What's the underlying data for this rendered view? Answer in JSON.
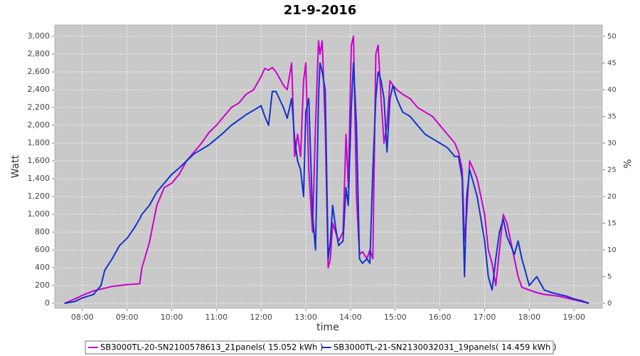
{
  "chart_data": {
    "type": "line",
    "title": "21-9-2016",
    "xlabel": "time",
    "ylabel": "Watt",
    "y2label": "%",
    "x": [
      "07:36",
      "07:50",
      "08:00",
      "08:15",
      "08:25",
      "08:30",
      "08:40",
      "08:50",
      "09:00",
      "09:10",
      "09:17",
      "09:20",
      "09:30",
      "09:40",
      "09:50",
      "10:00",
      "10:10",
      "10:20",
      "10:30",
      "10:40",
      "10:50",
      "11:00",
      "11:10",
      "11:20",
      "11:30",
      "11:40",
      "11:50",
      "12:00",
      "12:05",
      "12:10",
      "12:15",
      "12:20",
      "12:30",
      "12:35",
      "12:41",
      "12:45",
      "12:49",
      "12:53",
      "12:57",
      "13:00",
      "13:04",
      "13:09",
      "13:13",
      "13:17",
      "13:19",
      "13:22",
      "13:26",
      "13:30",
      "13:33",
      "13:36",
      "13:40",
      "13:44",
      "13:50",
      "13:54",
      "13:57",
      "14:01",
      "14:04",
      "14:08",
      "14:12",
      "14:16",
      "14:22",
      "14:26",
      "14:30",
      "14:34",
      "14:37",
      "14:41",
      "14:45",
      "14:49",
      "14:53",
      "14:57",
      "15:02",
      "15:10",
      "15:20",
      "15:30",
      "15:40",
      "15:50",
      "16:00",
      "16:10",
      "16:20",
      "16:25",
      "16:30",
      "16:33",
      "16:36",
      "16:40",
      "16:45",
      "16:50",
      "17:00",
      "17:05",
      "17:10",
      "17:15",
      "17:20",
      "17:25",
      "17:30",
      "17:35",
      "17:40",
      "17:45",
      "17:50",
      "18:00",
      "18:10",
      "18:20",
      "18:30",
      "18:40",
      "18:50",
      "19:00",
      "19:10",
      "19:20"
    ],
    "series": [
      {
        "name": "SB3000TL-20-SN2100578613_21panels( 15.052 kWh )",
        "color": "#cc00cc",
        "values": [
          0,
          50,
          90,
          140,
          160,
          170,
          190,
          200,
          210,
          215,
          220,
          400,
          680,
          1100,
          1300,
          1350,
          1450,
          1600,
          1700,
          1800,
          1920,
          2000,
          2100,
          2200,
          2250,
          2350,
          2400,
          2550,
          2640,
          2620,
          2650,
          2600,
          2450,
          2400,
          2700,
          1650,
          1900,
          1650,
          2500,
          2700,
          1500,
          800,
          2000,
          2950,
          2800,
          2950,
          2000,
          400,
          500,
          900,
          800,
          700,
          800,
          1900,
          1300,
          2900,
          3000,
          1200,
          550,
          580,
          500,
          600,
          500,
          2800,
          2900,
          2300,
          1800,
          2000,
          2500,
          2450,
          2400,
          2350,
          2300,
          2200,
          2150,
          2100,
          2000,
          1900,
          1800,
          1700,
          1500,
          700,
          1000,
          1600,
          1500,
          1400,
          1000,
          600,
          450,
          200,
          600,
          1000,
          900,
          700,
          500,
          300,
          180,
          150,
          120,
          100,
          90,
          80,
          60,
          40,
          20,
          0
        ]
      },
      {
        "name": "SB3000TL-21-SN2130032031_19panels( 14.459 kWh )",
        "color": "#1133cc",
        "values": [
          0,
          20,
          60,
          100,
          200,
          370,
          500,
          650,
          730,
          850,
          950,
          1000,
          1100,
          1250,
          1350,
          1450,
          1520,
          1600,
          1680,
          1730,
          1780,
          1850,
          1920,
          2000,
          2060,
          2120,
          2170,
          2220,
          2100,
          2000,
          2380,
          2380,
          2200,
          2080,
          2300,
          1850,
          1600,
          1500,
          1200,
          2150,
          2300,
          1000,
          600,
          2300,
          2700,
          2600,
          2400,
          500,
          700,
          1100,
          850,
          650,
          700,
          1300,
          1100,
          2200,
          2700,
          2000,
          500,
          450,
          500,
          450,
          1500,
          2300,
          2600,
          2500,
          2300,
          1700,
          2300,
          2450,
          2300,
          2150,
          2100,
          2000,
          1900,
          1850,
          1800,
          1750,
          1650,
          1650,
          1400,
          300,
          1200,
          1500,
          1350,
          1200,
          700,
          300,
          150,
          500,
          800,
          950,
          750,
          650,
          550,
          700,
          500,
          200,
          300,
          150,
          120,
          100,
          80,
          50,
          30,
          0
        ]
      }
    ],
    "xlim": [
      "07:23",
      "19:38"
    ],
    "xticks": [
      "08:00",
      "09:00",
      "10:00",
      "11:00",
      "12:00",
      "13:00",
      "14:00",
      "15:00",
      "16:00",
      "17:00",
      "18:00",
      "19:00"
    ],
    "ylim": [
      -56,
      3128
    ],
    "yticks": [
      0,
      200,
      400,
      600,
      800,
      {
        "value": 1000,
        "label": "1,000"
      },
      {
        "value": 1200,
        "label": "1,200"
      },
      {
        "value": 1400,
        "label": "1,400"
      },
      {
        "value": 1600,
        "label": "1,600"
      },
      {
        "value": 1800,
        "label": "1,800"
      },
      {
        "value": 2000,
        "label": "2,000"
      },
      {
        "value": 2200,
        "label": "2,200"
      },
      {
        "value": 2400,
        "label": "2,400"
      },
      {
        "value": 2600,
        "label": "2,600"
      },
      {
        "value": 2800,
        "label": "2,800"
      },
      {
        "value": 3000,
        "label": "3,000"
      }
    ],
    "y2lim": [
      -0.93,
      52.13
    ],
    "y2ticks": [
      0,
      5,
      10,
      15,
      20,
      25,
      30,
      35,
      40,
      45,
      50
    ],
    "grid": true,
    "legend": "bottom"
  }
}
